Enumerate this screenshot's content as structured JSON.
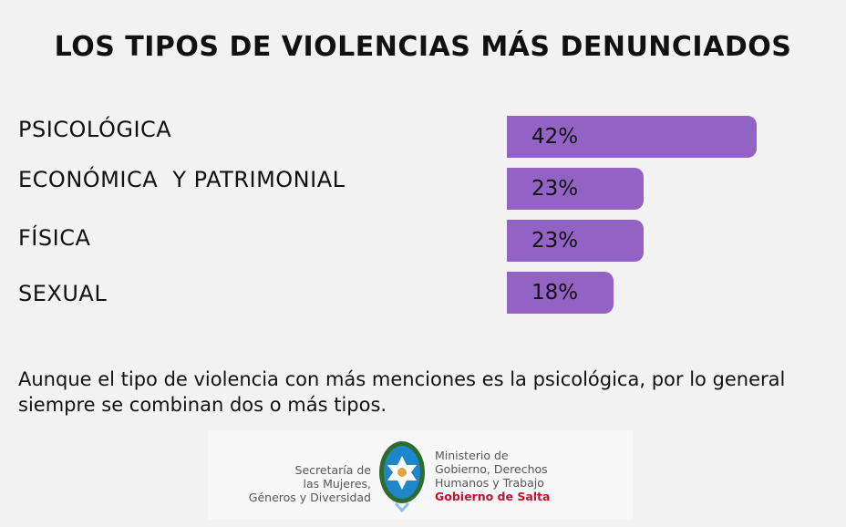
{
  "chart_data": {
    "type": "bar",
    "orientation": "horizontal",
    "title": "LOS TIPOS DE VIOLENCIAS MÁS DENUNCIADOS",
    "categories": [
      "PSICOLÓGICA",
      "ECONÓMICA  Y PATRIMONIAL",
      "FÍSICA",
      "SEXUAL"
    ],
    "values": [
      42,
      23,
      23,
      18
    ],
    "value_labels": [
      "42%",
      "23%",
      "23%",
      "18%"
    ],
    "xlabel": "",
    "ylabel": "",
    "xlim": [
      0,
      42
    ],
    "color": "#9263c4"
  },
  "note": "Aunque el tipo de violencia con más menciones es la psicológica, por lo general siempre se combinan dos o más tipos.",
  "footer": {
    "left": [
      "Secretaría de",
      "las Mujeres,",
      "Géneros y Diversidad"
    ],
    "right": [
      "Ministerio de",
      "Gobierno, Derechos",
      "Humanos y Trabajo"
    ],
    "brand": "Gobierno de Salta",
    "brand_color": "#c8102e"
  }
}
